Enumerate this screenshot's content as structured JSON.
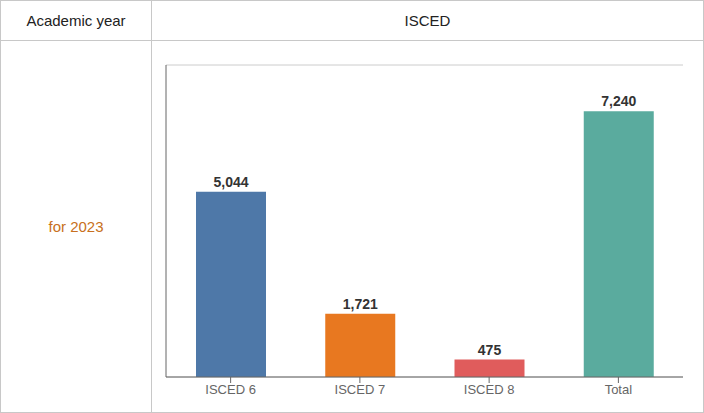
{
  "chart_data": {
    "type": "bar",
    "title": "ISCED",
    "annotations": [
      {
        "text": "Academic year"
      },
      {
        "text": "for 2023",
        "color": "#c87020"
      }
    ],
    "categories": [
      "ISCED 6",
      "ISCED 7",
      "ISCED 8",
      "Total"
    ],
    "values": [
      5044,
      1721,
      475,
      7240
    ],
    "value_labels": [
      "5,044",
      "1,721",
      "475",
      "7,240"
    ],
    "colors": [
      "#4e78a8",
      "#e87820",
      "#e05c5c",
      "#5aab9e"
    ],
    "ylim": [
      0,
      8500
    ],
    "yticks": [
      0,
      2000,
      4000,
      6000,
      8000
    ],
    "grid": true,
    "data_labels": true,
    "tick_labels": "x"
  }
}
